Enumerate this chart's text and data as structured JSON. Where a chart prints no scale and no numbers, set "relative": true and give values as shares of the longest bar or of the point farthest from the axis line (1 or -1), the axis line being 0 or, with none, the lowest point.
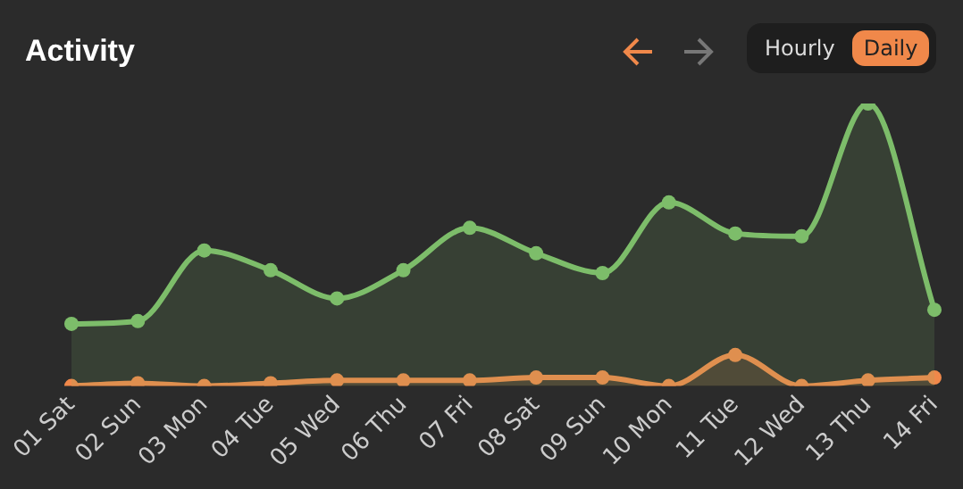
{
  "chart_data": {
    "type": "area",
    "title": "Activity",
    "annotations": [
      "Hourly",
      "Daily"
    ],
    "relative": true,
    "legend": false,
    "grid": false,
    "marker": "circle",
    "categories": [
      "01 Sat",
      "02 Sun",
      "03 Mon",
      "04 Tue",
      "05 Wed",
      "06 Thu",
      "07 Fri",
      "08 Sat",
      "09 Sun",
      "10 Mon",
      "11 Tue",
      "12 Wed",
      "13 Thu",
      "14 Fri"
    ],
    "series": [
      {
        "color": "#7dbd6a",
        "values": [
          0.22,
          0.23,
          0.48,
          0.41,
          0.31,
          0.41,
          0.56,
          0.47,
          0.4,
          0.65,
          0.54,
          0.53,
          1,
          0.27
        ]
      },
      {
        "color": "#f0884a",
        "values": [
          0,
          0.01,
          0,
          0.01,
          0.02,
          0.02,
          0.02,
          0.03,
          0.03,
          0,
          0.11,
          0,
          0.02,
          0.03
        ]
      }
    ]
  }
}
